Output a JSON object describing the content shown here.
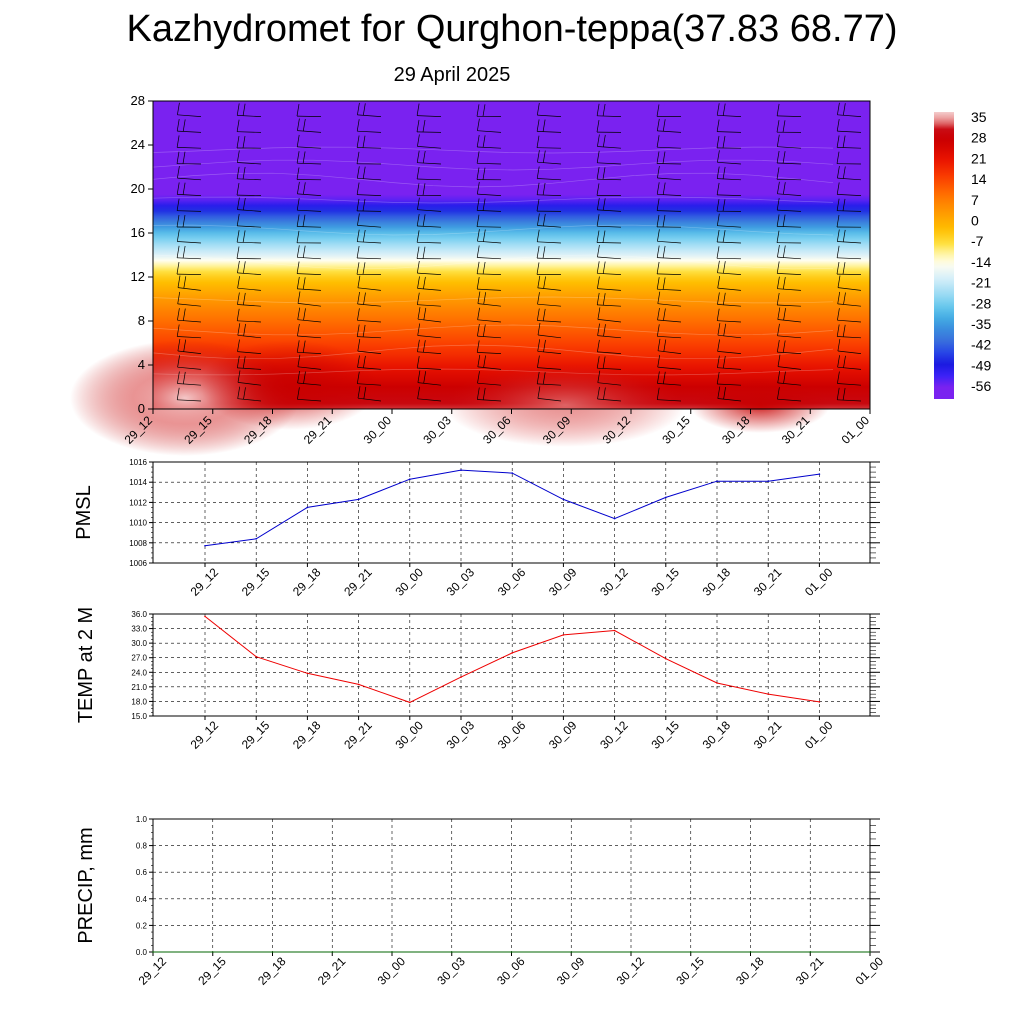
{
  "title": "Kazhydromet for Qurghon-teppa(37.83 68.77)",
  "subtitle": "29 April 2025",
  "chart_data": [
    {
      "type": "heatmap",
      "x_ticks": [
        "29_12",
        "29_15",
        "29_18",
        "29_21",
        "30_00",
        "30_03",
        "30_06",
        "30_09",
        "30_12",
        "30_15",
        "30_18",
        "30_21",
        "01_00"
      ],
      "y_ticks": [
        "0",
        "4",
        "8",
        "12",
        "16",
        "20",
        "24",
        "28"
      ],
      "ylim": [
        0,
        28
      ],
      "colorbar": {
        "labels": [
          "35",
          "28",
          "21",
          "14",
          "7",
          "0",
          "-7",
          "-14",
          "-21",
          "-28",
          "-35",
          "-42",
          "-49",
          "-56"
        ],
        "range": [
          -60,
          38
        ]
      },
      "profile": [
        {
          "h": 0,
          "v": 33
        },
        {
          "h": 2,
          "v": 28
        },
        {
          "h": 5,
          "v": 18
        },
        {
          "h": 8,
          "v": 10
        },
        {
          "h": 10,
          "v": 4
        },
        {
          "h": 12,
          "v": -4
        },
        {
          "h": 13,
          "v": -10
        },
        {
          "h": 14,
          "v": -18
        },
        {
          "h": 16,
          "v": -30
        },
        {
          "h": 18,
          "v": -46
        },
        {
          "h": 19,
          "v": -54
        },
        {
          "h": 20,
          "v": -58
        },
        {
          "h": 28,
          "v": -59
        }
      ],
      "wind_barbs": true
    },
    {
      "type": "line",
      "ylabel": "PMSL",
      "categories": [
        "29_12",
        "29_15",
        "29_18",
        "29_21",
        "30_00",
        "30_03",
        "30_06",
        "30_09",
        "30_12",
        "30_15",
        "30_18",
        "30_21",
        "01_00"
      ],
      "series": [
        {
          "values": [
            1007.7,
            1008.4,
            1011.5,
            1012.3,
            1014.3,
            1015.2,
            1014.9,
            1012.3,
            1010.4,
            1012.5,
            1014.1,
            1014.1,
            1014.8
          ],
          "color": "#0000cc"
        }
      ],
      "ylim": [
        1006,
        1016
      ],
      "yticks": [
        "1006",
        "1008",
        "1010",
        "1012",
        "1014",
        "1016"
      ],
      "grid": true
    },
    {
      "type": "line",
      "ylabel": "TEMP at 2 M",
      "categories": [
        "29_12",
        "29_15",
        "29_18",
        "29_21",
        "30_00",
        "30_03",
        "30_06",
        "30_09",
        "30_12",
        "30_15",
        "30_18",
        "30_21",
        "01_00"
      ],
      "series": [
        {
          "values": [
            35.5,
            27.2,
            23.8,
            21.5,
            17.8,
            23.0,
            28.0,
            31.7,
            32.6,
            26.8,
            21.8,
            19.5,
            17.9
          ],
          "color": "#ee0000"
        }
      ],
      "ylim": [
        15,
        36
      ],
      "yticks": [
        "15.0",
        "18.0",
        "21.0",
        "24.0",
        "27.0",
        "30.0",
        "33.0",
        "36.0"
      ],
      "grid": true
    },
    {
      "type": "line",
      "ylabel": "PRECIP, mm",
      "categories": [
        "29_12",
        "29_15",
        "29_18",
        "29_21",
        "30_00",
        "30_03",
        "30_06",
        "30_09",
        "30_12",
        "30_15",
        "30_18",
        "30_21",
        "01_00"
      ],
      "series": [
        {
          "values": [
            0,
            0,
            0,
            0,
            0,
            0,
            0,
            0,
            0,
            0,
            0,
            0,
            0
          ],
          "color": "#006400"
        }
      ],
      "ylim": [
        0,
        1
      ],
      "yticks": [
        "0.0",
        "0.2",
        "0.4",
        "0.6",
        "0.8",
        "1.0"
      ],
      "grid": true
    }
  ]
}
